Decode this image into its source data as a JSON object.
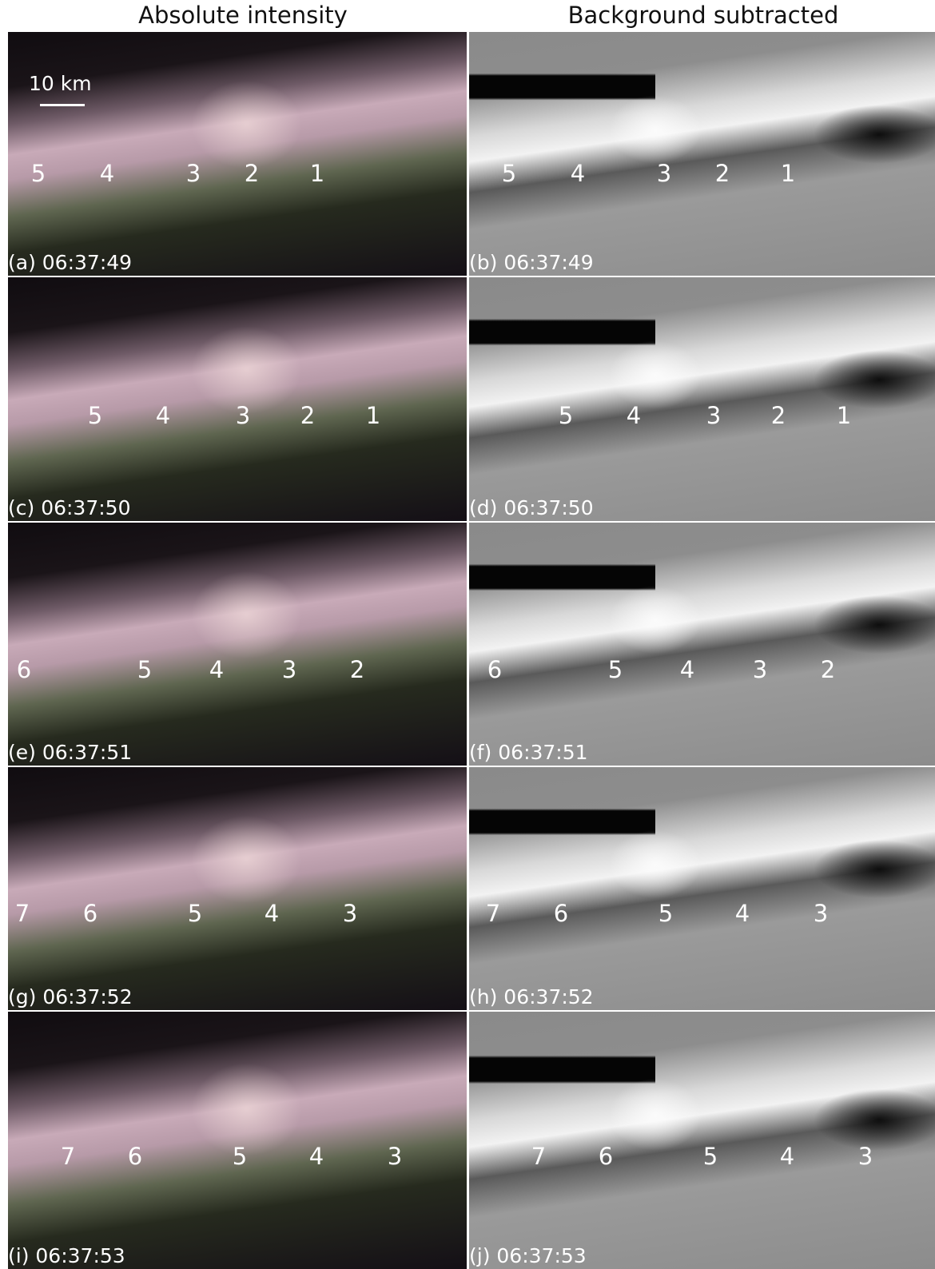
{
  "header": {
    "left": "Absolute intensity",
    "right": "Background subtracted"
  },
  "scale_bar": "10 km",
  "panels": [
    {
      "label": "(a) 06:37:49",
      "markers": [
        5,
        4,
        3,
        2,
        1
      ]
    },
    {
      "label": "(b) 06:37:49",
      "markers": [
        5,
        4,
        3,
        2,
        1
      ]
    },
    {
      "label": "(c) 06:37:50",
      "markers": [
        5,
        4,
        3,
        2,
        1
      ]
    },
    {
      "label": "(d) 06:37:50",
      "markers": [
        5,
        4,
        3,
        2,
        1
      ]
    },
    {
      "label": "(e) 06:37:51",
      "markers": [
        6,
        5,
        4,
        3,
        2
      ]
    },
    {
      "label": "(f) 06:37:51",
      "markers": [
        6,
        5,
        4,
        3,
        2
      ]
    },
    {
      "label": "(g) 06:37:52",
      "markers": [
        7,
        6,
        5,
        4,
        3
      ]
    },
    {
      "label": "(h) 06:37:52",
      "markers": [
        7,
        6,
        5,
        4,
        3
      ]
    },
    {
      "label": "(i) 06:37:53",
      "markers": [
        7,
        6,
        5,
        4,
        3
      ]
    },
    {
      "label": "(j) 06:37:53",
      "markers": [
        7,
        6,
        5,
        4,
        3
      ]
    }
  ]
}
